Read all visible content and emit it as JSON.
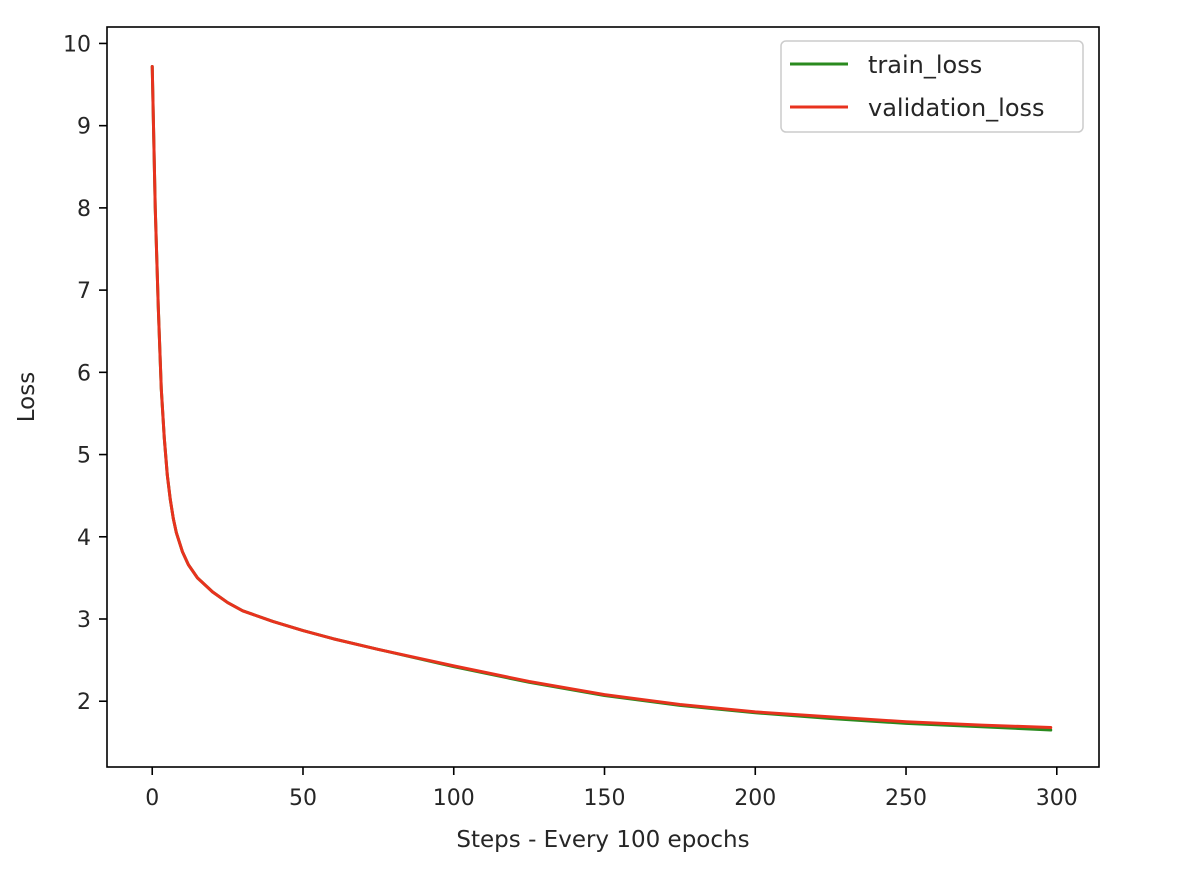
{
  "chart_data": {
    "type": "line",
    "title": "",
    "xlabel": "Steps - Every 100 epochs",
    "ylabel": "Loss",
    "xlim": [
      -15,
      314
    ],
    "ylim": [
      1.2,
      10.2
    ],
    "xticks": [
      0,
      50,
      100,
      150,
      200,
      250,
      300
    ],
    "xtick_labels": [
      "0",
      "50",
      "100",
      "150",
      "200",
      "250",
      "300"
    ],
    "yticks": [
      2,
      3,
      4,
      5,
      6,
      7,
      8,
      9,
      10
    ],
    "ytick_labels": [
      "2",
      "3",
      "4",
      "5",
      "6",
      "7",
      "8",
      "9",
      "10"
    ],
    "grid": false,
    "legend_position": "top-right",
    "series": [
      {
        "name": "train_loss",
        "color": "#2a8a1e",
        "x": [
          0,
          1,
          2,
          3,
          4,
          5,
          6,
          7,
          8,
          10,
          12,
          15,
          20,
          25,
          30,
          40,
          50,
          60,
          75,
          100,
          125,
          150,
          175,
          200,
          225,
          250,
          275,
          298
        ],
        "y": [
          9.72,
          8.0,
          6.8,
          5.8,
          5.2,
          4.75,
          4.45,
          4.22,
          4.05,
          3.82,
          3.66,
          3.5,
          3.33,
          3.2,
          3.1,
          2.97,
          2.86,
          2.76,
          2.63,
          2.42,
          2.23,
          2.07,
          1.95,
          1.86,
          1.79,
          1.73,
          1.69,
          1.65
        ]
      },
      {
        "name": "validation_loss",
        "color": "#e8321e",
        "x": [
          0,
          1,
          2,
          3,
          4,
          5,
          6,
          7,
          8,
          10,
          12,
          15,
          20,
          25,
          30,
          40,
          50,
          60,
          75,
          100,
          125,
          150,
          175,
          200,
          225,
          250,
          275,
          298
        ],
        "y": [
          9.72,
          8.0,
          6.8,
          5.8,
          5.2,
          4.75,
          4.45,
          4.22,
          4.05,
          3.82,
          3.66,
          3.5,
          3.33,
          3.2,
          3.1,
          2.97,
          2.86,
          2.76,
          2.63,
          2.43,
          2.24,
          2.08,
          1.96,
          1.87,
          1.81,
          1.75,
          1.71,
          1.68
        ]
      }
    ]
  }
}
